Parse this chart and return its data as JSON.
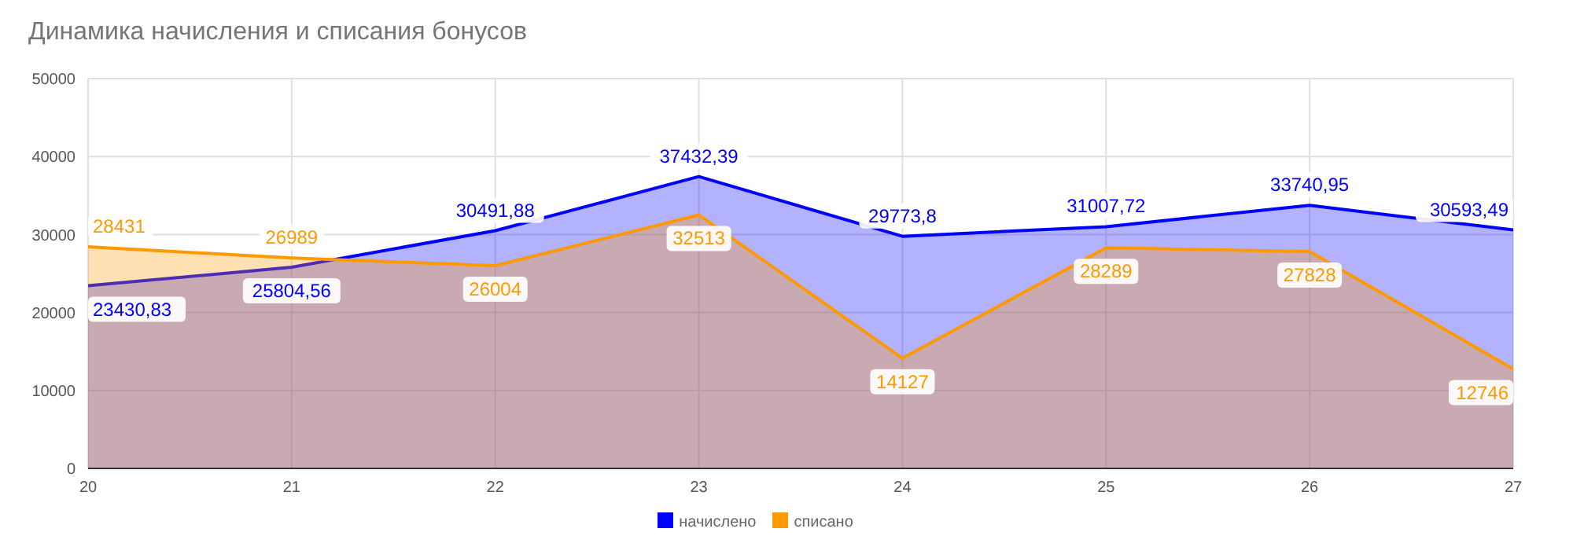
{
  "chart_data": {
    "type": "area",
    "title": "Динамика начисления и списания бонусов",
    "x": [
      20,
      21,
      22,
      23,
      24,
      25,
      26,
      27
    ],
    "xlim": [
      20,
      27
    ],
    "xticks": [
      20,
      21,
      22,
      23,
      24,
      25,
      26,
      27
    ],
    "ylim": [
      0,
      50000
    ],
    "yticks": [
      0,
      10000,
      20000,
      30000,
      40000,
      50000
    ],
    "grid": true,
    "legend": "bottom",
    "series": [
      {
        "name": "начислено",
        "color": "#0000ff",
        "values": [
          23430.83,
          25804.56,
          30491.88,
          37432.39,
          29773.8,
          31007.72,
          33740.95,
          30593.49
        ],
        "value_labels": [
          "23430,83",
          "25804,56",
          "30491,88",
          "37432,39",
          "29773,8",
          "31007,72",
          "33740,95",
          "30593,49"
        ]
      },
      {
        "name": "списано",
        "color": "#ff9900",
        "values": [
          28431,
          26989,
          26004,
          32513,
          14127,
          28289,
          27828,
          12746
        ],
        "value_labels": [
          "28431",
          "26989",
          "26004",
          "32513",
          "14127",
          "28289",
          "27828",
          "12746"
        ]
      }
    ]
  }
}
